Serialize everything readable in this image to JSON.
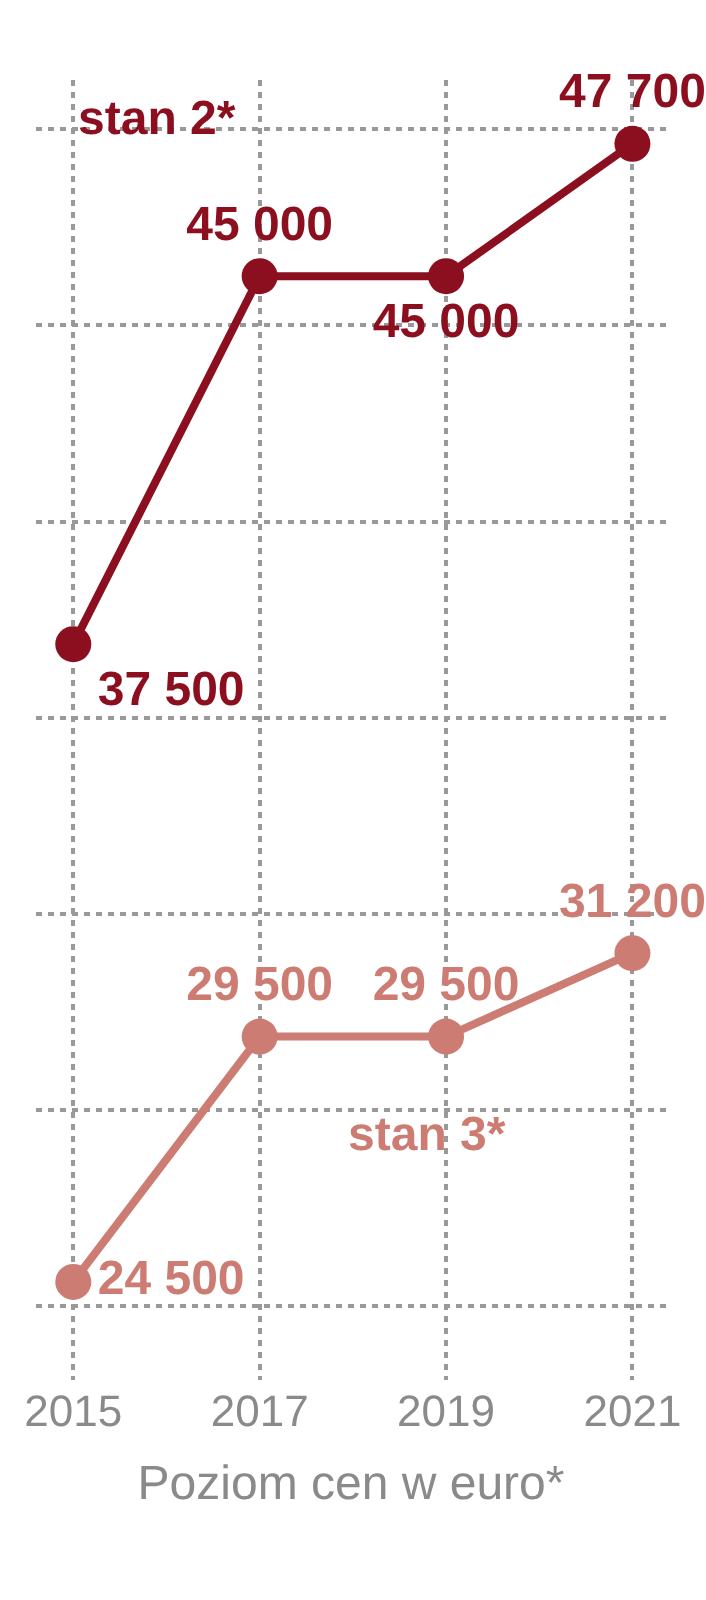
{
  "chart_data": {
    "type": "line",
    "xlabel": "Poziom cen w euro*",
    "categories": [
      "2015",
      "2017",
      "2019",
      "2021"
    ],
    "series": [
      {
        "name": "stan 2*",
        "color": "#8c0f1f",
        "values": [
          37500,
          45000,
          45000,
          47700
        ],
        "value_labels": [
          "37 500",
          "45 000",
          "45 000",
          "47 700"
        ]
      },
      {
        "name": "stan 3*",
        "color": "#cc7c72",
        "values": [
          24500,
          29500,
          29500,
          31200
        ],
        "value_labels": [
          "24 500",
          "29 500",
          "29 500",
          "31 200"
        ]
      }
    ],
    "ylim": [
      22500,
      49000
    ],
    "yticks": [
      {
        "value": 24000,
        "label": null
      },
      {
        "value": 28000,
        "label": null
      },
      {
        "value": 32000,
        "label": null
      },
      {
        "value": 36000,
        "label": null
      },
      {
        "value": 40000,
        "label": null
      },
      {
        "value": 44000,
        "label": null
      },
      {
        "value": 48000,
        "label": null
      }
    ],
    "grid": true,
    "marker": "circle",
    "line_style": "solid",
    "tick_labels": "x"
  }
}
